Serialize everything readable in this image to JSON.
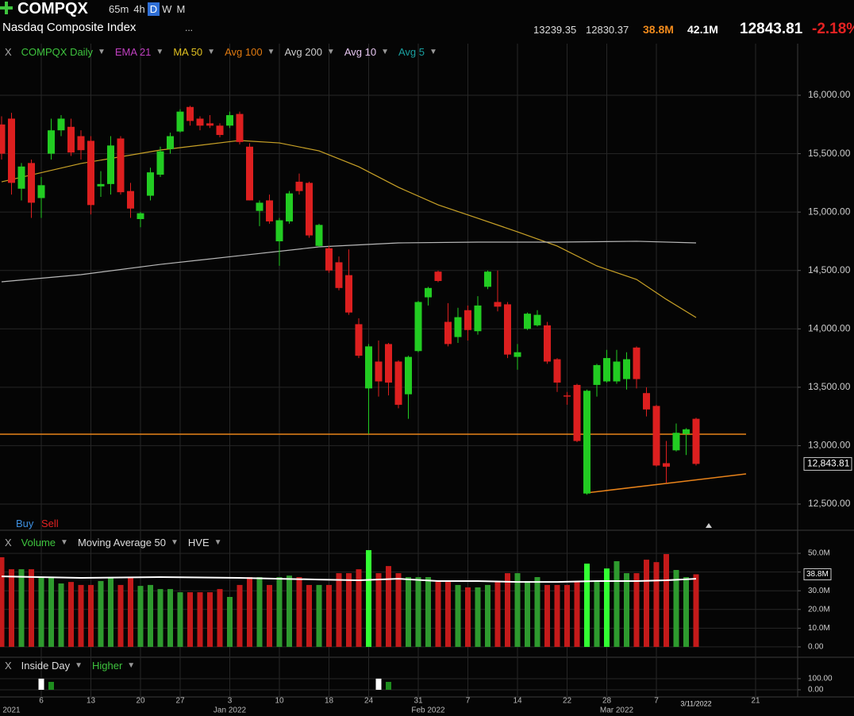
{
  "header": {
    "symbol": "COMPQX",
    "intervals": [
      "65m",
      "4h",
      "D",
      "W",
      "M"
    ],
    "active_interval": 2,
    "name": "Nasdaq Composite Index",
    "more": "...",
    "high": "13239.35",
    "low": "12830.37",
    "volume": "38.8M",
    "avg_volume": "42.1M",
    "last": "12843.81",
    "change": "-2.18%"
  },
  "chart_data": [
    {
      "type": "candlestick",
      "close_label": "X",
      "legend": [
        {
          "label": "COMPQX Daily",
          "color": "#3ec43e"
        },
        {
          "label": "EMA 21",
          "color": "#c040c0"
        },
        {
          "label": "MA 50",
          "color": "#e0c020"
        },
        {
          "label": "Avg 100",
          "color": "#e07a10"
        },
        {
          "label": "Avg 200",
          "color": "#cccccc"
        },
        {
          "label": "Avg 10",
          "color": "#e6c6f0"
        },
        {
          "label": "Avg 5",
          "color": "#1aa0a0"
        }
      ],
      "buy_label": "Buy",
      "sell_label": "Sell",
      "x": [
        0,
        1,
        2,
        3,
        4,
        5,
        6,
        7,
        8,
        9,
        10,
        11,
        12,
        13,
        14,
        15,
        16,
        17,
        18,
        19,
        20,
        21,
        22,
        23,
        24,
        25,
        26,
        27,
        28,
        29,
        30,
        31,
        32,
        33,
        34,
        35,
        36,
        37,
        38,
        39,
        40,
        41,
        42,
        43,
        44,
        45,
        46,
        47,
        48,
        49,
        50,
        51,
        52,
        53,
        54,
        55,
        56,
        57,
        58,
        59,
        60,
        61,
        62,
        63,
        64,
        65,
        66,
        67,
        68,
        69,
        70
      ],
      "open": [
        15750,
        15800,
        15200,
        15420,
        15120,
        15500,
        15700,
        15730,
        15650,
        15610,
        15220,
        15240,
        15630,
        15180,
        14940,
        15140,
        15320,
        15540,
        15690,
        15900,
        15800,
        15760,
        15740,
        15740,
        15840,
        15560,
        15010,
        15100,
        14750,
        14920,
        15260,
        15250,
        14710,
        14690,
        14570,
        14460,
        14040,
        13490,
        13720,
        13870,
        13720,
        13440,
        13810,
        14270,
        14490,
        14060,
        13930,
        14160,
        13980,
        14360,
        14230,
        14210,
        13760,
        14000,
        14030,
        14030,
        13740,
        13430,
        13520,
        12590,
        13520,
        13550,
        13550,
        13570,
        13840,
        13450,
        13340,
        12850,
        12960,
        13100,
        13230
      ],
      "high": [
        15820,
        15850,
        15420,
        15450,
        15300,
        15800,
        15830,
        15800,
        15700,
        15650,
        15350,
        15650,
        15650,
        15250,
        15000,
        15380,
        15560,
        15680,
        15880,
        15910,
        15820,
        15830,
        15760,
        15860,
        15860,
        15590,
        15100,
        15150,
        14950,
        15180,
        15330,
        15260,
        14900,
        14710,
        14620,
        14680,
        14090,
        13870,
        13900,
        13880,
        13730,
        13770,
        14240,
        14360,
        14500,
        14220,
        14180,
        14200,
        14280,
        14500,
        14500,
        14230,
        13870,
        14140,
        14160,
        14060,
        13750,
        13460,
        13530,
        13480,
        13700,
        13820,
        13820,
        13800,
        13850,
        13500,
        13350,
        13040,
        13190,
        13150,
        13239.35
      ],
      "low": [
        15450,
        15150,
        15100,
        14950,
        14950,
        15450,
        15650,
        15480,
        15450,
        14980,
        15130,
        15150,
        15150,
        14950,
        14870,
        15100,
        15300,
        15500,
        15680,
        15740,
        15700,
        15720,
        15640,
        15720,
        15580,
        15100,
        14880,
        14900,
        14540,
        14900,
        15150,
        14780,
        14700,
        14480,
        14330,
        14120,
        13750,
        13100,
        13420,
        13430,
        13320,
        13230,
        13800,
        14200,
        14400,
        13850,
        13880,
        13900,
        13950,
        14340,
        14150,
        13750,
        13650,
        13990,
        14020,
        13700,
        13460,
        13350,
        13030,
        12580,
        13420,
        13540,
        13530,
        13480,
        13490,
        13250,
        12820,
        12680,
        12950,
        12920,
        12830.37
      ],
      "close": [
        15500,
        15250,
        15390,
        15080,
        15230,
        15700,
        15800,
        15510,
        15530,
        15060,
        15240,
        15570,
        15170,
        15030,
        14990,
        15340,
        15520,
        15650,
        15860,
        15780,
        15740,
        15740,
        15660,
        15830,
        15600,
        15100,
        15080,
        14920,
        14930,
        15160,
        15180,
        14800,
        14890,
        14500,
        14350,
        14140,
        13770,
        13850,
        13550,
        13540,
        13350,
        13760,
        14230,
        14350,
        14410,
        13870,
        14100,
        13990,
        14200,
        14490,
        14190,
        13780,
        13800,
        14130,
        14120,
        13720,
        13540,
        13420,
        13040,
        13470,
        13690,
        13750,
        13720,
        13740,
        13570,
        13310,
        12830,
        12820,
        13110,
        13140,
        12843.81
      ],
      "up_color": "#22cc22",
      "down_color": "#dd1f1f",
      "series": [
        {
          "color": "#c9a227",
          "x": [
            0,
            8,
            16,
            24,
            28,
            32,
            36,
            40,
            44,
            48,
            52,
            56,
            60,
            64,
            67,
            70
          ],
          "values": [
            15259,
            15416,
            15531,
            15613,
            15592,
            15524,
            15388,
            15212,
            15062,
            14947,
            14831,
            14709,
            14539,
            14423,
            14253,
            14097
          ]
        },
        {
          "color": "#b8b8b8",
          "x": [
            0,
            8,
            16,
            24,
            32,
            40,
            48,
            56,
            64,
            70
          ],
          "values": [
            14403,
            14464,
            14552,
            14627,
            14702,
            14736,
            14743,
            14743,
            14750,
            14736
          ]
        }
      ],
      "drawings": [
        {
          "color": "#e8831a",
          "x": [
            -0.16,
            75.04
          ],
          "values": [
            13098,
            13098
          ]
        },
        {
          "color": "#e8831a",
          "x": [
            58.9,
            75.04
          ],
          "values": [
            12595,
            12758
          ]
        }
      ],
      "last_price": {
        "value": 12843.81,
        "label": "12,843.81"
      },
      "xlim": [
        -0.16,
        80.24
      ],
      "xticks": [
        {
          "value": 4,
          "label": "6"
        },
        {
          "value": 9,
          "label": "13"
        },
        {
          "value": 14,
          "label": "20"
        },
        {
          "value": 18,
          "label": "27"
        },
        {
          "value": 23,
          "label": "3"
        },
        {
          "value": 28,
          "label": "10"
        },
        {
          "value": 33,
          "label": "18"
        },
        {
          "value": 37,
          "label": "24"
        },
        {
          "value": 42,
          "label": "31"
        },
        {
          "value": 47,
          "label": "7"
        },
        {
          "value": 52,
          "label": "14"
        },
        {
          "value": 57,
          "label": "22"
        },
        {
          "value": 61,
          "label": "28"
        },
        {
          "value": 66,
          "label": "7"
        },
        {
          "value": 76,
          "label": "21"
        }
      ],
      "x_period_labels": [
        {
          "value": 1,
          "label": "2021"
        },
        {
          "value": 23,
          "label": "Jan 2022"
        },
        {
          "value": 43,
          "label": "Feb 2022"
        },
        {
          "value": 62,
          "label": "Mar 2022"
        }
      ],
      "cursor_date": {
        "value": 70,
        "label": "3/11/2022"
      },
      "ylim": [
        12398,
        16306
      ],
      "yticks": [
        {
          "value": 16000,
          "label": "16,000.00"
        },
        {
          "value": 15500,
          "label": "15,500.00"
        },
        {
          "value": 15000,
          "label": "15,000.00"
        },
        {
          "value": 14500,
          "label": "14,500.00"
        },
        {
          "value": 14000,
          "label": "14,000.00"
        },
        {
          "value": 13500,
          "label": "13,500.00"
        },
        {
          "value": 13000,
          "label": "13,000.00"
        },
        {
          "value": 12500,
          "label": "12,500.00"
        }
      ],
      "grid": true
    },
    {
      "type": "bar",
      "close_label": "X",
      "legend": [
        {
          "label": "Volume",
          "color": "#3ec43e"
        },
        {
          "label": "Moving Average 50",
          "color": "#dddddd"
        },
        {
          "label": "HVE",
          "color": "#dddddd"
        }
      ],
      "values": [
        47.9,
        41.5,
        41.5,
        41.5,
        37.3,
        37.3,
        33.9,
        34.7,
        33.1,
        33.1,
        35.2,
        37.3,
        33.1,
        37.3,
        32.6,
        33.1,
        30.9,
        30.9,
        29.2,
        29.2,
        29.2,
        29.2,
        30.9,
        26.7,
        33.1,
        37.3,
        37.3,
        33.1,
        37.3,
        38.1,
        37.3,
        33.1,
        33.1,
        33.1,
        39.4,
        39.4,
        41.5,
        51.7,
        39.4,
        43.2,
        39.4,
        37.3,
        37.3,
        37.3,
        35.2,
        35.2,
        33.1,
        31.8,
        31.8,
        33.1,
        35.2,
        39.4,
        39.4,
        35.2,
        37.3,
        33.1,
        33.1,
        33.1,
        35.2,
        44.5,
        35.2,
        41.9,
        45.8,
        39.4,
        39.4,
        46.6,
        45.3,
        49.6,
        41.1,
        37.3,
        38.8
      ],
      "hve": [
        37,
        59,
        61
      ],
      "up_color": "#2e9a2e",
      "down_color": "#c41a1a",
      "hve_color": "#33ff33",
      "ma": {
        "color": "#ffffff",
        "x": [
          0,
          8,
          16,
          24,
          28,
          32,
          36,
          40,
          44,
          48,
          52,
          56,
          60,
          64,
          67,
          70
        ],
        "values": [
          37.7,
          36.9,
          37.3,
          36.9,
          36.4,
          36.0,
          35.6,
          36.4,
          35.2,
          35.2,
          34.7,
          34.7,
          35.2,
          35.2,
          35.6,
          36.4
        ]
      },
      "last_value": {
        "value": 38.8,
        "label": "38.8M"
      },
      "ylim": [
        -1.3,
        53
      ],
      "yticks": [
        {
          "value": 50,
          "label": "50.0M"
        },
        {
          "value": 40,
          "label": "40.0M"
        },
        {
          "value": 30,
          "label": "30.0M"
        },
        {
          "value": 20,
          "label": "20.0M"
        },
        {
          "value": 10,
          "label": "10.0M"
        },
        {
          "value": 0,
          "label": "0.00"
        }
      ],
      "grid": true
    },
    {
      "type": "bar",
      "close_label": "X",
      "legend": [
        {
          "label": "Inside Day",
          "color": "#dddddd"
        },
        {
          "label": "Higher",
          "color": "#3ec43e"
        }
      ],
      "series": [
        {
          "color": "#ffffff",
          "x": [
            4,
            38
          ],
          "values": [
            100,
            100
          ]
        },
        {
          "color": "#1e8c1e",
          "x": [
            5,
            39
          ],
          "values": [
            71,
            71
          ]
        }
      ],
      "ylim": [
        -43,
        171
      ],
      "yticks": [
        {
          "value": 100,
          "label": "100.00"
        },
        {
          "value": 0,
          "label": "0.00"
        }
      ],
      "grid": true
    }
  ]
}
